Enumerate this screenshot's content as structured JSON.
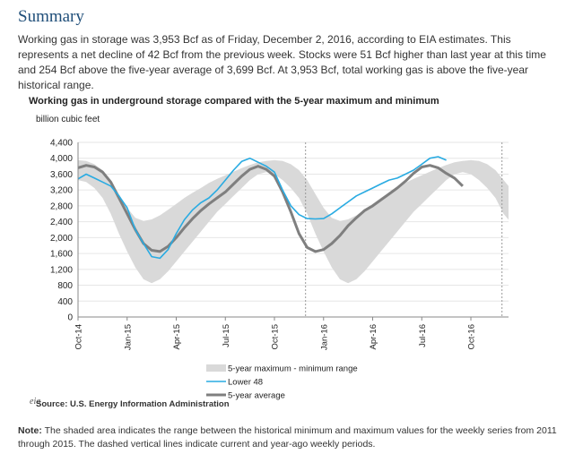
{
  "summary": {
    "title": "Summary",
    "text": "Working gas in storage was 3,953 Bcf as of Friday, December 2, 2016, according to EIA estimates. This represents a net decline of 42 Bcf from the previous week. Stocks were 51 Bcf higher than last year at this time and 254 Bcf above the five-year average of 3,699 Bcf. At 3,953 Bcf, total working gas is above the five-year historical range."
  },
  "source": {
    "logo_text": "eia",
    "text": "Source:  U.S. Energy Information Administration"
  },
  "note": {
    "label": "Note:",
    "text": " The shaded area indicates the range between the historical minimum and maximum values for the weekly series from 2011 through 2015. The dashed vertical lines indicate current and year-ago weekly periods."
  },
  "colors": {
    "range_fill": "#d9d9d9",
    "lower48": "#29abe2",
    "avg": "#7f7f7f",
    "dashed": "#999999"
  },
  "chart_data": {
    "type": "area",
    "title": "Working gas in underground storage compared with the 5-year maximum and minimum",
    "ylabel": "billion cubic feet",
    "ylim": [
      0,
      4400
    ],
    "yticks": [
      0,
      400,
      800,
      1200,
      1600,
      2000,
      2400,
      2800,
      3200,
      3600,
      4000,
      4400
    ],
    "ytick_labels": [
      "0",
      "400",
      "800",
      "1,200",
      "1,600",
      "2,000",
      "2,400",
      "2,800",
      "3,200",
      "3,600",
      "4,000",
      "4,400"
    ],
    "x_tick_labels": [
      "Oct-14",
      "Jan-15",
      "Apr-15",
      "Jul-15",
      "Oct-15",
      "Jan-16",
      "Apr-16",
      "Jul-16",
      "Oct-16"
    ],
    "x_tick_months": [
      0,
      3,
      6,
      9,
      12,
      15,
      18,
      21,
      24
    ],
    "xlim": [
      0,
      26.3
    ],
    "dashed_lines_months": [
      13.9,
      25.9
    ],
    "x_months": [
      0,
      0.5,
      1,
      1.5,
      2,
      2.5,
      3,
      3.5,
      4,
      4.5,
      5,
      5.5,
      6,
      6.5,
      7,
      7.5,
      8,
      8.5,
      9,
      9.5,
      10,
      10.5,
      11,
      11.5,
      12,
      12.5,
      13,
      13.5,
      14,
      14.5,
      15,
      15.5,
      16,
      16.5,
      17,
      17.5,
      18,
      18.5,
      19,
      19.5,
      20,
      20.5,
      21,
      21.5,
      22,
      22.5,
      23,
      23.5,
      24,
      24.5,
      25,
      25.5,
      26,
      26.3
    ],
    "legend": [
      {
        "key": "range",
        "label": "5-year maximum - minimum range"
      },
      {
        "key": "lower48",
        "label": "Lower 48"
      },
      {
        "key": "avg",
        "label": "5-year average"
      }
    ],
    "series": [
      {
        "name": "5-year maximum - minimum range (max)",
        "values": [
          3950,
          3930,
          3850,
          3700,
          3450,
          3100,
          2750,
          2500,
          2420,
          2460,
          2560,
          2700,
          2850,
          3000,
          3130,
          3250,
          3380,
          3480,
          3570,
          3660,
          3750,
          3830,
          3900,
          3930,
          3950,
          3930,
          3850,
          3700,
          3450,
          3100,
          2750,
          2500,
          2420,
          2460,
          2560,
          2700,
          2850,
          3000,
          3130,
          3250,
          3380,
          3480,
          3570,
          3660,
          3750,
          3830,
          3900,
          3930,
          3950,
          3930,
          3850,
          3700,
          3450,
          3300
        ]
      },
      {
        "name": "5-year maximum - minimum range (min)",
        "values": [
          3450,
          3400,
          3250,
          3000,
          2600,
          2100,
          1650,
          1250,
          950,
          850,
          950,
          1150,
          1400,
          1650,
          1900,
          2150,
          2400,
          2650,
          2850,
          3050,
          3250,
          3450,
          3600,
          3650,
          3600,
          3450,
          3250,
          3000,
          2600,
          2100,
          1650,
          1250,
          950,
          850,
          950,
          1150,
          1400,
          1650,
          1900,
          2150,
          2400,
          2650,
          2850,
          3050,
          3250,
          3450,
          3600,
          3650,
          3600,
          3450,
          3250,
          3000,
          2600,
          2450
        ]
      },
      {
        "name": "Lower 48",
        "values": [
          3480,
          3600,
          3500,
          3400,
          3300,
          3050,
          2750,
          2200,
          1850,
          1520,
          1480,
          1700,
          2100,
          2450,
          2700,
          2880,
          3000,
          3200,
          3450,
          3700,
          3920,
          4000,
          3900,
          3800,
          3650,
          3200,
          2800,
          2580,
          2480,
          2470,
          2480,
          2600,
          2750,
          2900,
          3050,
          3150,
          3250,
          3350,
          3450,
          3500,
          3600,
          3700,
          3850,
          4000,
          4040,
          3950,
          null,
          null,
          null,
          null,
          null,
          null,
          null,
          null
        ]
      },
      {
        "name": "5-year average",
        "values": [
          3760,
          3820,
          3780,
          3650,
          3400,
          3000,
          2600,
          2200,
          1850,
          1680,
          1650,
          1780,
          2000,
          2250,
          2480,
          2680,
          2850,
          3000,
          3150,
          3350,
          3550,
          3720,
          3800,
          3720,
          3550,
          3150,
          2650,
          2100,
          1750,
          1650,
          1700,
          1850,
          2050,
          2300,
          2500,
          2680,
          2800,
          2950,
          3100,
          3250,
          3420,
          3620,
          3780,
          3820,
          3760,
          3620,
          3500,
          3300,
          null,
          null,
          null,
          null,
          null,
          null
        ]
      }
    ]
  }
}
